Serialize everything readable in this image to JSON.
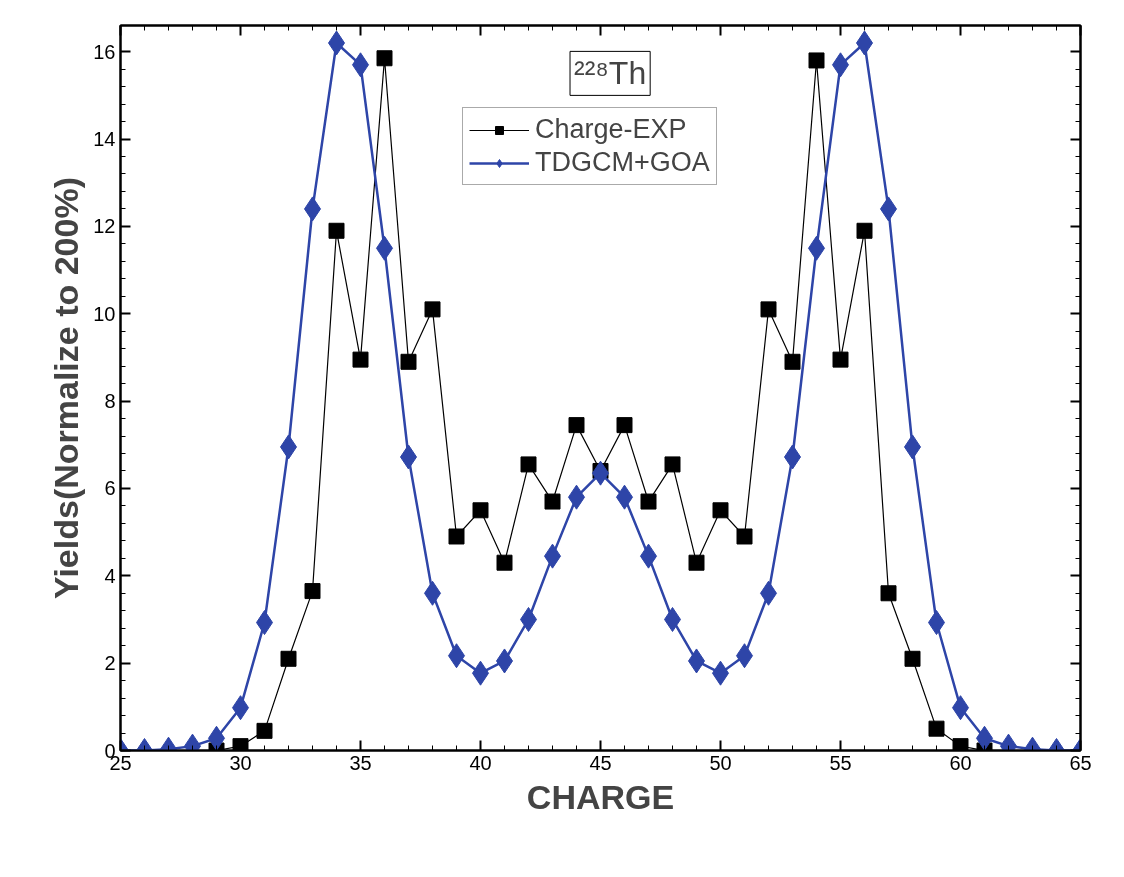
{
  "chart_data": {
    "type": "line",
    "xlabel": "CHARGE",
    "ylabel": "Yields(Normalize to 200%)",
    "annotations": [
      "²²⁸Th"
    ],
    "xlim": [
      25,
      65
    ],
    "xticks": [
      25,
      30,
      35,
      40,
      45,
      50,
      55,
      60,
      65
    ],
    "ylim": [
      0,
      16.6
    ],
    "yticks": [
      0,
      2,
      4,
      6,
      8,
      10,
      12,
      14,
      16
    ],
    "legend": "top",
    "grid": false,
    "series": [
      {
        "name": "Charge-EXP",
        "color": "#000000",
        "marker": "square",
        "line_style": "solid",
        "x": [
          29,
          30,
          31,
          32,
          33,
          34,
          35,
          36,
          37,
          38,
          39,
          40,
          41,
          42,
          43,
          44,
          45,
          46,
          47,
          48,
          49,
          50,
          51,
          52,
          53,
          54,
          55,
          56,
          57,
          58,
          59,
          60,
          61
        ],
        "values": [
          0,
          0.1,
          0.45,
          2.1,
          3.65,
          11.9,
          8.95,
          15.85,
          8.9,
          10.1,
          4.9,
          5.5,
          4.3,
          6.55,
          5.7,
          7.45,
          6.4,
          7.45,
          5.7,
          6.55,
          4.3,
          5.5,
          4.9,
          10.1,
          8.9,
          15.8,
          8.95,
          11.9,
          3.6,
          2.1,
          0.5,
          0.1,
          0
        ]
      },
      {
        "name": "TDGCM+GOA",
        "color": "#2e45a8",
        "marker": "diamond",
        "line_style": "solid",
        "x": [
          25,
          26,
          27,
          28,
          29,
          30,
          31,
          32,
          33,
          34,
          35,
          36,
          37,
          38,
          39,
          40,
          41,
          42,
          43,
          44,
          45,
          46,
          47,
          48,
          49,
          50,
          51,
          52,
          53,
          54,
          55,
          56,
          57,
          58,
          59,
          60,
          61,
          62,
          63,
          64,
          65
        ],
        "values": [
          0,
          0,
          0.03,
          0.1,
          0.28,
          0.98,
          2.93,
          6.95,
          12.4,
          16.2,
          15.7,
          11.5,
          6.72,
          3.6,
          2.17,
          1.77,
          2.05,
          3.0,
          4.45,
          5.8,
          6.35,
          5.8,
          4.45,
          3.0,
          2.05,
          1.77,
          2.17,
          3.6,
          6.72,
          11.5,
          15.7,
          16.2,
          12.4,
          6.95,
          2.93,
          0.98,
          0.28,
          0.1,
          0.03,
          0,
          0
        ]
      }
    ]
  }
}
